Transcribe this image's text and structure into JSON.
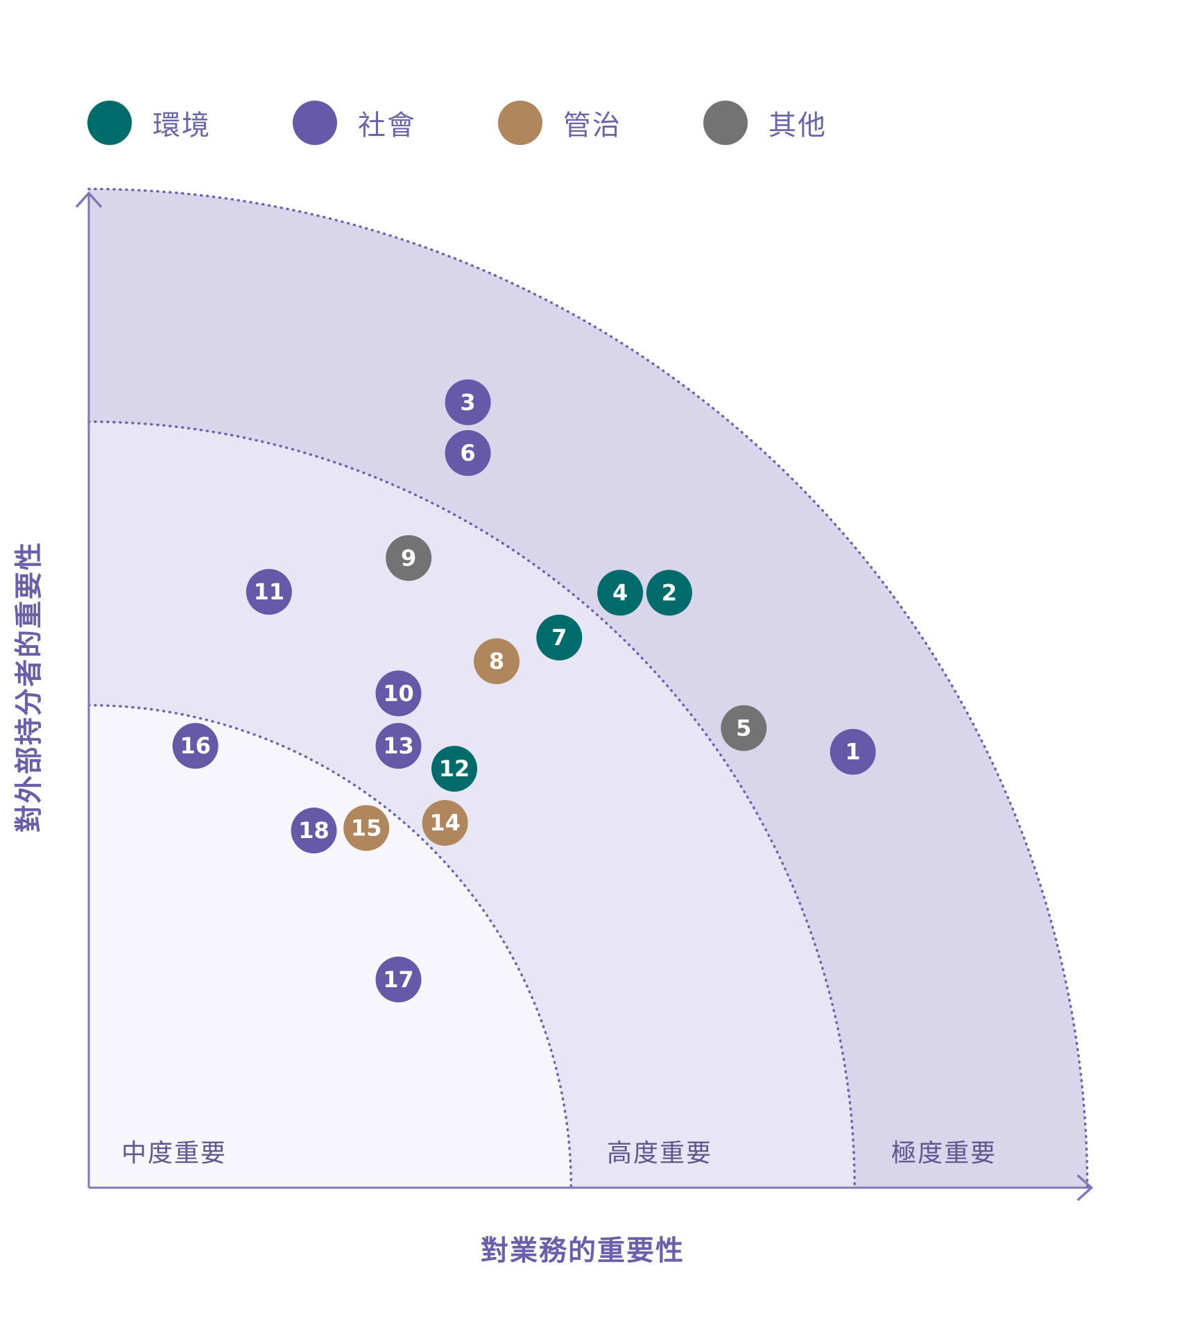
{
  "chart_data": {
    "type": "scatter",
    "title": "",
    "xlabel": "對業務的重要性",
    "ylabel": "對外部持分者的重要性",
    "legend_position": "top",
    "xlim": [
      0,
      1180
    ],
    "ylim": [
      0,
      1180
    ],
    "legend": [
      {
        "key": "env",
        "label": "環境",
        "color": "#006b6b"
      },
      {
        "key": "soc",
        "label": "社會",
        "color": "#6559a8"
      },
      {
        "key": "gov",
        "label": "管治",
        "color": "#b0865c"
      },
      {
        "key": "oth",
        "label": "其他",
        "color": "#737373"
      }
    ],
    "zones": [
      {
        "label": "中度重要",
        "radius": 570,
        "fill": "#f7f6fc"
      },
      {
        "label": "高度重要",
        "radius": 905,
        "fill": "#e8e6f4"
      },
      {
        "label": "極度重要",
        "radius": 1180,
        "fill": "#d9d6ec"
      }
    ],
    "points": [
      {
        "label": "1",
        "category": "soc",
        "x": 903,
        "y": 515
      },
      {
        "label": "2",
        "category": "env",
        "x": 686,
        "y": 703
      },
      {
        "label": "3",
        "category": "soc",
        "x": 448,
        "y": 928
      },
      {
        "label": "4",
        "category": "env",
        "x": 628,
        "y": 703
      },
      {
        "label": "5",
        "category": "oth",
        "x": 774,
        "y": 543
      },
      {
        "label": "6",
        "category": "soc",
        "x": 448,
        "y": 868
      },
      {
        "label": "7",
        "category": "env",
        "x": 556,
        "y": 650
      },
      {
        "label": "8",
        "category": "gov",
        "x": 482,
        "y": 622
      },
      {
        "label": "9",
        "category": "oth",
        "x": 378,
        "y": 744
      },
      {
        "label": "10",
        "category": "soc",
        "x": 366,
        "y": 584
      },
      {
        "label": "11",
        "category": "soc",
        "x": 213,
        "y": 704
      },
      {
        "label": "12",
        "category": "env",
        "x": 432,
        "y": 495
      },
      {
        "label": "13",
        "category": "soc",
        "x": 366,
        "y": 522
      },
      {
        "label": "14",
        "category": "gov",
        "x": 421,
        "y": 431
      },
      {
        "label": "15",
        "category": "gov",
        "x": 328,
        "y": 425
      },
      {
        "label": "16",
        "category": "soc",
        "x": 126,
        "y": 522
      },
      {
        "label": "17",
        "category": "soc",
        "x": 366,
        "y": 246
      },
      {
        "label": "18",
        "category": "soc",
        "x": 266,
        "y": 422
      }
    ]
  }
}
